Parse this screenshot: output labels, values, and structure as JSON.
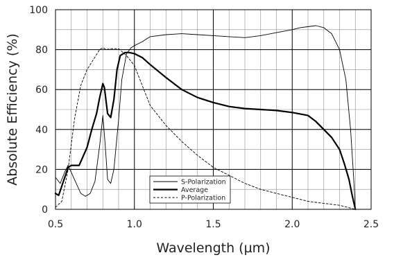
{
  "chart_data": {
    "type": "line",
    "xlabel": "Wavelength (µm)",
    "ylabel": "Absolute Efficiency (%)",
    "xlim": [
      0.5,
      2.5
    ],
    "ylim": [
      0,
      100
    ],
    "xticks": [
      0.5,
      1.0,
      1.5,
      2.0,
      2.5
    ],
    "xtick_labels": [
      "0.5",
      "1.0",
      "1.5",
      "2.0",
      "2.5"
    ],
    "yticks": [
      0,
      20,
      40,
      60,
      80,
      100
    ],
    "ytick_labels": [
      "0",
      "20",
      "40",
      "60",
      "80",
      "100"
    ],
    "grid": true,
    "legend_position": "bottom-center",
    "series": [
      {
        "name": "S-Polarization",
        "style": "thin-solid",
        "color": "#000000",
        "x": [
          0.5,
          0.53,
          0.56,
          0.58,
          0.62,
          0.66,
          0.69,
          0.72,
          0.75,
          0.78,
          0.8,
          0.815,
          0.83,
          0.85,
          0.87,
          0.9,
          0.92,
          0.95,
          0.98,
          1.0,
          1.05,
          1.1,
          1.2,
          1.3,
          1.4,
          1.5,
          1.6,
          1.7,
          1.8,
          1.9,
          2.0,
          2.05,
          2.1,
          2.15,
          2.2,
          2.25,
          2.3,
          2.34,
          2.37,
          2.39,
          2.4
        ],
        "y": [
          16,
          13,
          19,
          22,
          15,
          8,
          6.5,
          8,
          14,
          32,
          47,
          32,
          15,
          13,
          20,
          45,
          65,
          78,
          81,
          82,
          84,
          86.5,
          87.5,
          88,
          87.5,
          87,
          86.5,
          86,
          87,
          88.5,
          90,
          91,
          91.5,
          92,
          91,
          88,
          80,
          65,
          40,
          15,
          0
        ]
      },
      {
        "name": "Average",
        "style": "thick-solid",
        "color": "#000000",
        "x": [
          0.5,
          0.52,
          0.55,
          0.58,
          0.6,
          0.65,
          0.7,
          0.73,
          0.76,
          0.78,
          0.8,
          0.81,
          0.83,
          0.85,
          0.87,
          0.89,
          0.91,
          0.94,
          0.97,
          1.0,
          1.05,
          1.1,
          1.2,
          1.3,
          1.4,
          1.5,
          1.6,
          1.7,
          1.8,
          1.9,
          2.0,
          2.1,
          2.15,
          2.2,
          2.25,
          2.3,
          2.33,
          2.36,
          2.38,
          2.4
        ],
        "y": [
          8,
          7,
          14,
          21,
          22,
          22,
          31,
          40,
          48,
          56,
          63,
          61,
          48,
          46,
          55,
          70,
          77,
          78.5,
          78.5,
          78,
          76,
          72.5,
          66,
          60,
          56,
          53.5,
          51.5,
          50.5,
          50,
          49.5,
          48.5,
          47,
          44,
          40,
          36,
          30,
          23,
          15,
          7,
          0
        ]
      },
      {
        "name": "P-Polarization",
        "style": "dashed",
        "color": "#000000",
        "x": [
          0.5,
          0.54,
          0.58,
          0.62,
          0.66,
          0.7,
          0.74,
          0.78,
          0.8,
          0.82,
          0.85,
          0.9,
          0.95,
          1.0,
          1.05,
          1.1,
          1.2,
          1.3,
          1.4,
          1.5,
          1.6,
          1.7,
          1.8,
          1.9,
          2.0,
          2.1,
          2.2,
          2.3,
          2.35,
          2.4
        ],
        "y": [
          1,
          4,
          20,
          45,
          62,
          70,
          75,
          80,
          81,
          80,
          80.5,
          80.5,
          77,
          72,
          62,
          52,
          42,
          34,
          27,
          21,
          17,
          13,
          10,
          8,
          6,
          4,
          3,
          2,
          1,
          0
        ]
      }
    ]
  }
}
